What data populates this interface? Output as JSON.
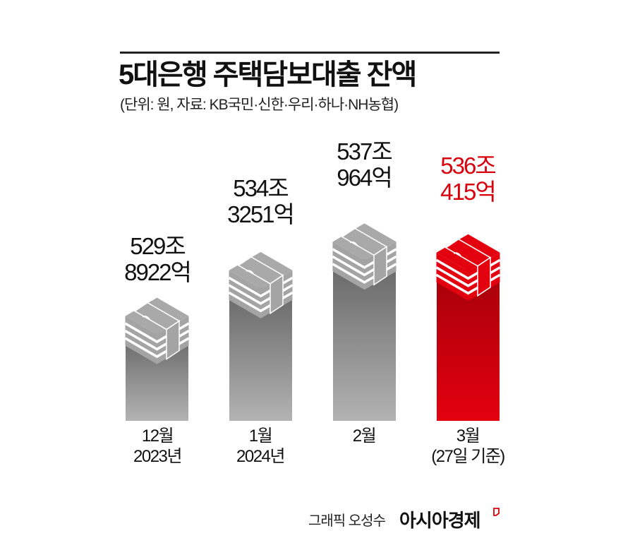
{
  "header": {
    "title": "5대은행 주택담보대출 잔액",
    "subtitle": "(단위: 원, 자료: KB국민·신한·우리·하나·NH농협)"
  },
  "footer": {
    "credit": "그래픽 오성수",
    "brand": "아시아경제"
  },
  "colors": {
    "gray_bar_top": "#6b6b6b",
    "gray_bar_bottom": "#b0b0b0",
    "gray_stack": "#a9a9a9",
    "red_bar_top": "#a8000a",
    "red_bar_bottom": "#e0000f",
    "red_stack": "#e3000f",
    "highlight_text": "#d9000d"
  },
  "bars": [
    {
      "value_line1": "529조",
      "value_line2": "8922억",
      "cat_line1": "12월",
      "cat_line2": "2023년",
      "highlight": false
    },
    {
      "value_line1": "534조",
      "value_line2": "3251억",
      "cat_line1": "1월",
      "cat_line2": "2024년",
      "highlight": false
    },
    {
      "value_line1": "537조",
      "value_line2": "964억",
      "cat_line1": "2월",
      "cat_line2": "",
      "highlight": false
    },
    {
      "value_line1": "536조",
      "value_line2": "415억",
      "cat_line1": "3월",
      "cat_line2": "(27일 기준)",
      "highlight": true
    }
  ],
  "chart_data": {
    "type": "bar",
    "title": "5대은행 주택담보대출 잔액",
    "subtitle": "(단위: 원, 자료: KB국민·신한·우리·하나·NH농협)",
    "categories": [
      "2023년 12월",
      "2024년 1월",
      "2024년 2월",
      "2024년 3월 (27일 기준)"
    ],
    "values": [
      529.8922,
      534.3251,
      537.0964,
      536.0415
    ],
    "value_labels": [
      "529조 8922억",
      "534조 3251억",
      "537조 964억",
      "536조 415억"
    ],
    "unit": "조원",
    "highlight_index": 3,
    "xlabel": "",
    "ylabel": "",
    "grid": false,
    "legend": "none"
  }
}
